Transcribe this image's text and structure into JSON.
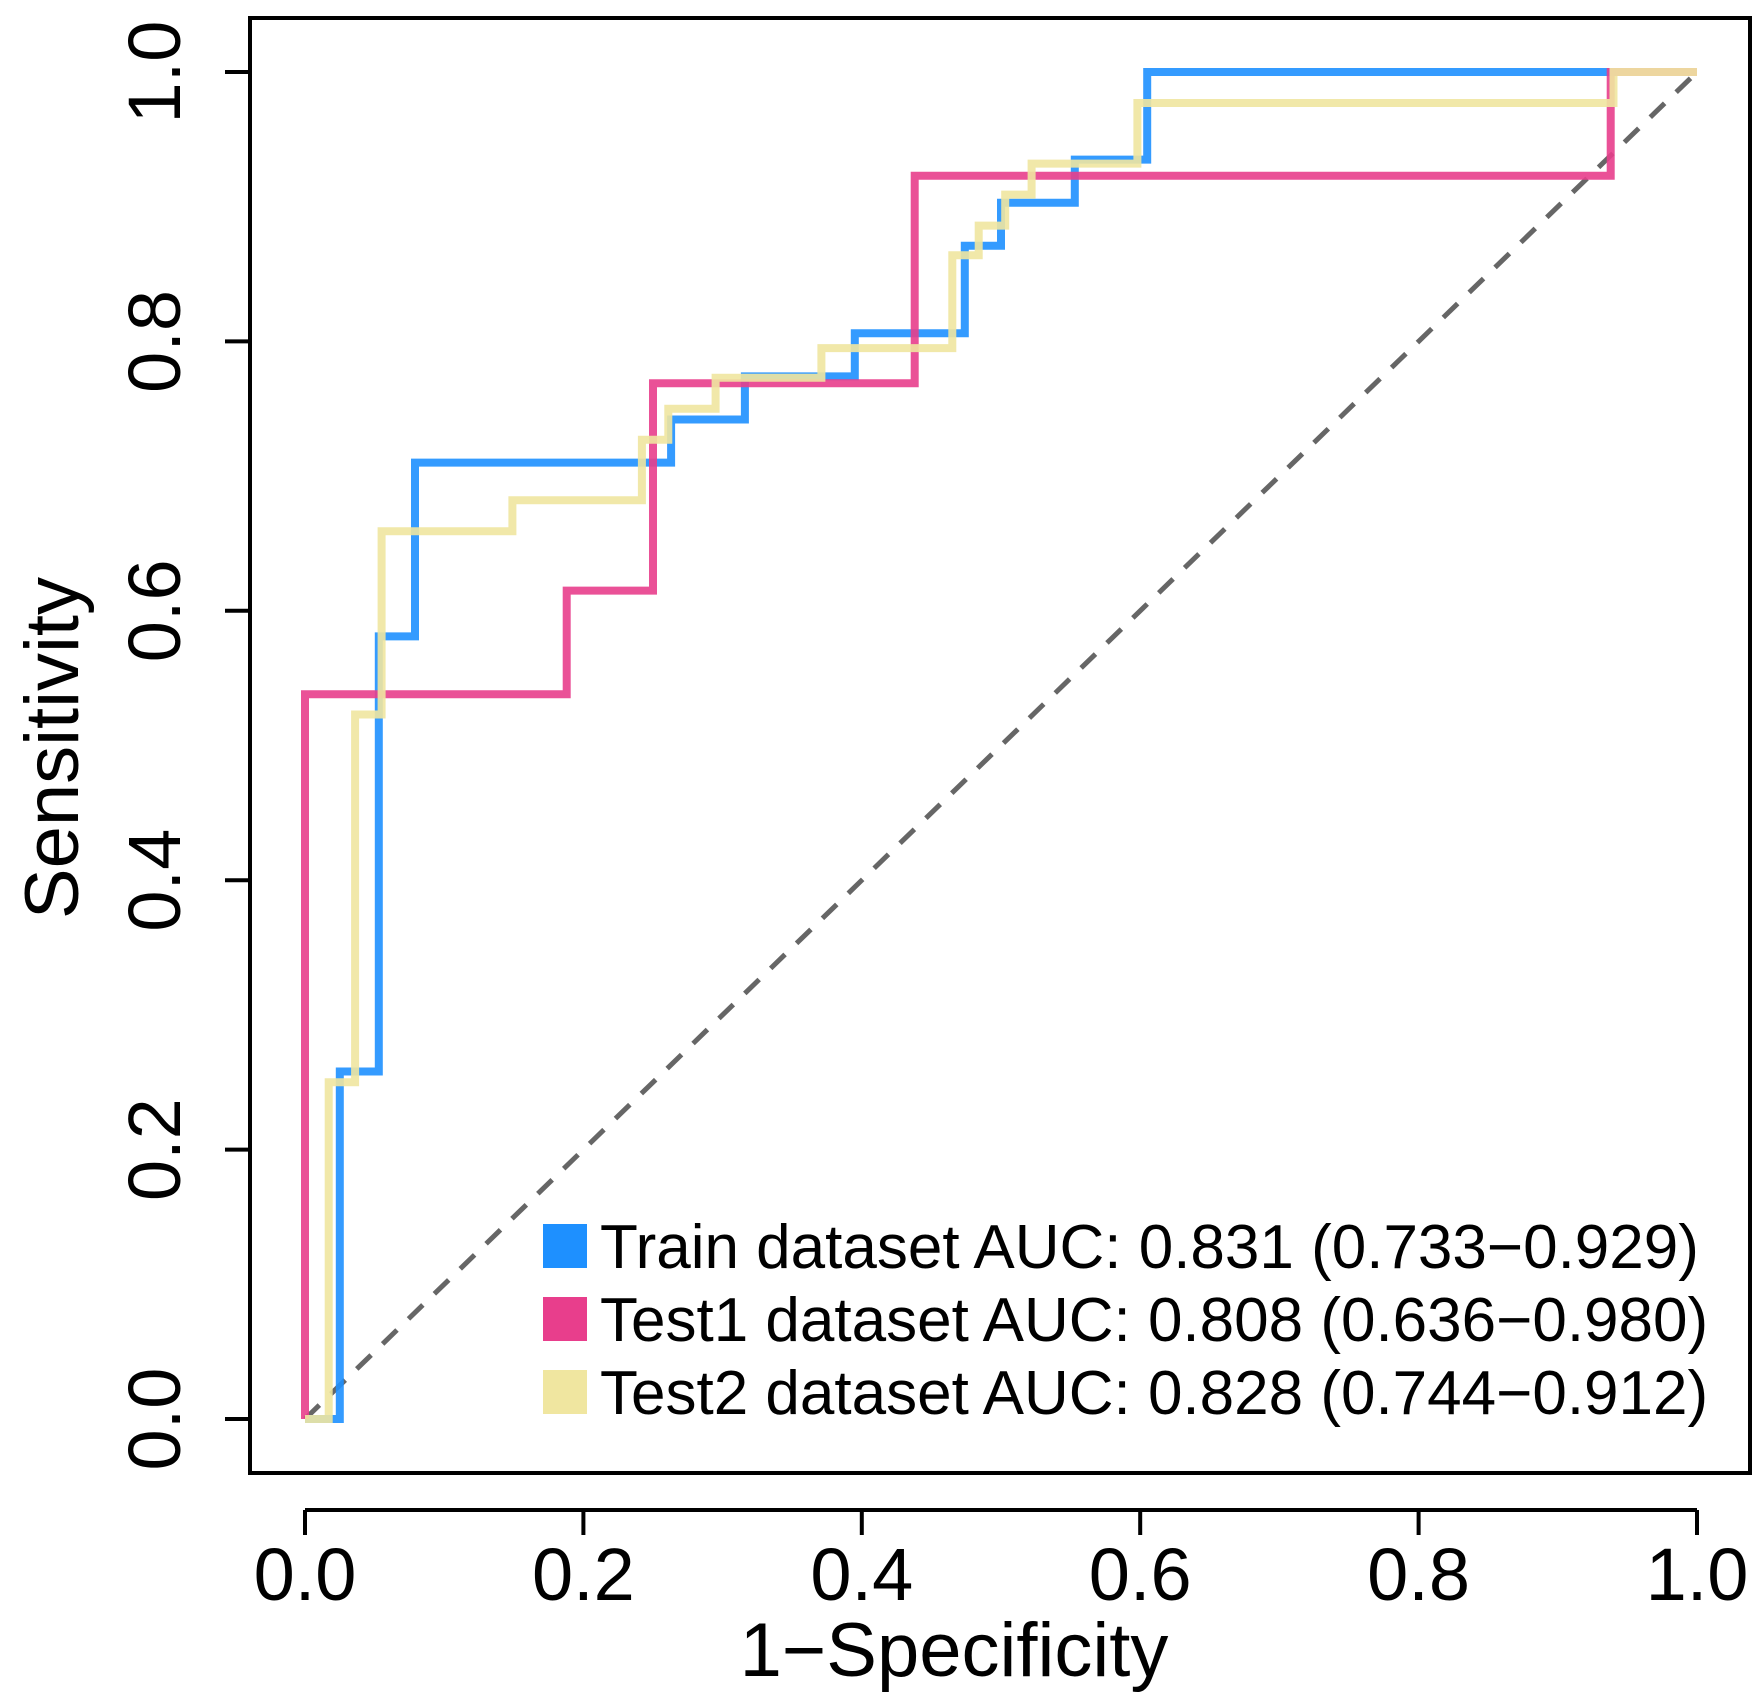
{
  "chart_data": {
    "type": "line",
    "title": "",
    "xlabel": "1−Specificity",
    "ylabel": "Sensitivity",
    "xlim": [
      0,
      1
    ],
    "ylim": [
      0,
      1
    ],
    "x_ticks": [
      "0.0",
      "0.2",
      "0.4",
      "0.6",
      "0.8",
      "1.0"
    ],
    "y_ticks": [
      "0.0",
      "0.2",
      "0.4",
      "0.6",
      "0.8",
      "1.0"
    ],
    "grid": false,
    "legend_position": "bottom-right",
    "reference_line": {
      "from": [
        0,
        0
      ],
      "to": [
        1,
        1
      ],
      "style": "dashed",
      "color": "#666666"
    },
    "series": [
      {
        "name": "Train dataset AUC: 0.831 (0.733−0.929)",
        "color": "#1E90FF",
        "points": [
          [
            0,
            0
          ],
          [
            0.025,
            0
          ],
          [
            0.025,
            0.258
          ],
          [
            0.053,
            0.258
          ],
          [
            0.053,
            0.581
          ],
          [
            0.079,
            0.581
          ],
          [
            0.079,
            0.71
          ],
          [
            0.263,
            0.71
          ],
          [
            0.263,
            0.742
          ],
          [
            0.316,
            0.742
          ],
          [
            0.316,
            0.774
          ],
          [
            0.395,
            0.774
          ],
          [
            0.395,
            0.806
          ],
          [
            0.474,
            0.806
          ],
          [
            0.474,
            0.871
          ],
          [
            0.5,
            0.871
          ],
          [
            0.5,
            0.903
          ],
          [
            0.553,
            0.903
          ],
          [
            0.553,
            0.935
          ],
          [
            0.605,
            0.935
          ],
          [
            0.605,
            1.0
          ],
          [
            1.0,
            1.0
          ]
        ]
      },
      {
        "name": "Test1 dataset AUC: 0.808 (0.636−0.980)",
        "color": "#E83E8C",
        "points": [
          [
            0,
            0
          ],
          [
            0,
            0.538
          ],
          [
            0.188,
            0.538
          ],
          [
            0.188,
            0.615
          ],
          [
            0.25,
            0.615
          ],
          [
            0.25,
            0.769
          ],
          [
            0.438,
            0.769
          ],
          [
            0.438,
            0.923
          ],
          [
            0.938,
            0.923
          ],
          [
            0.938,
            1.0
          ],
          [
            1.0,
            1.0
          ]
        ]
      },
      {
        "name": "Test2 dataset AUC: 0.828 (0.744−0.912)",
        "color": "#F0E6A0",
        "points": [
          [
            0,
            0
          ],
          [
            0.017,
            0
          ],
          [
            0.017,
            0.25
          ],
          [
            0.036,
            0.25
          ],
          [
            0.036,
            0.523
          ],
          [
            0.055,
            0.523
          ],
          [
            0.055,
            0.659
          ],
          [
            0.149,
            0.659
          ],
          [
            0.149,
            0.682
          ],
          [
            0.242,
            0.682
          ],
          [
            0.242,
            0.727
          ],
          [
            0.261,
            0.727
          ],
          [
            0.261,
            0.75
          ],
          [
            0.295,
            0.75
          ],
          [
            0.295,
            0.773
          ],
          [
            0.371,
            0.773
          ],
          [
            0.371,
            0.795
          ],
          [
            0.465,
            0.795
          ],
          [
            0.465,
            0.864
          ],
          [
            0.484,
            0.864
          ],
          [
            0.484,
            0.886
          ],
          [
            0.503,
            0.886
          ],
          [
            0.503,
            0.909
          ],
          [
            0.522,
            0.909
          ],
          [
            0.522,
            0.932
          ],
          [
            0.598,
            0.932
          ],
          [
            0.598,
            0.977
          ],
          [
            0.94,
            0.977
          ],
          [
            0.94,
            1.0
          ],
          [
            1.0,
            1.0
          ]
        ]
      }
    ]
  }
}
